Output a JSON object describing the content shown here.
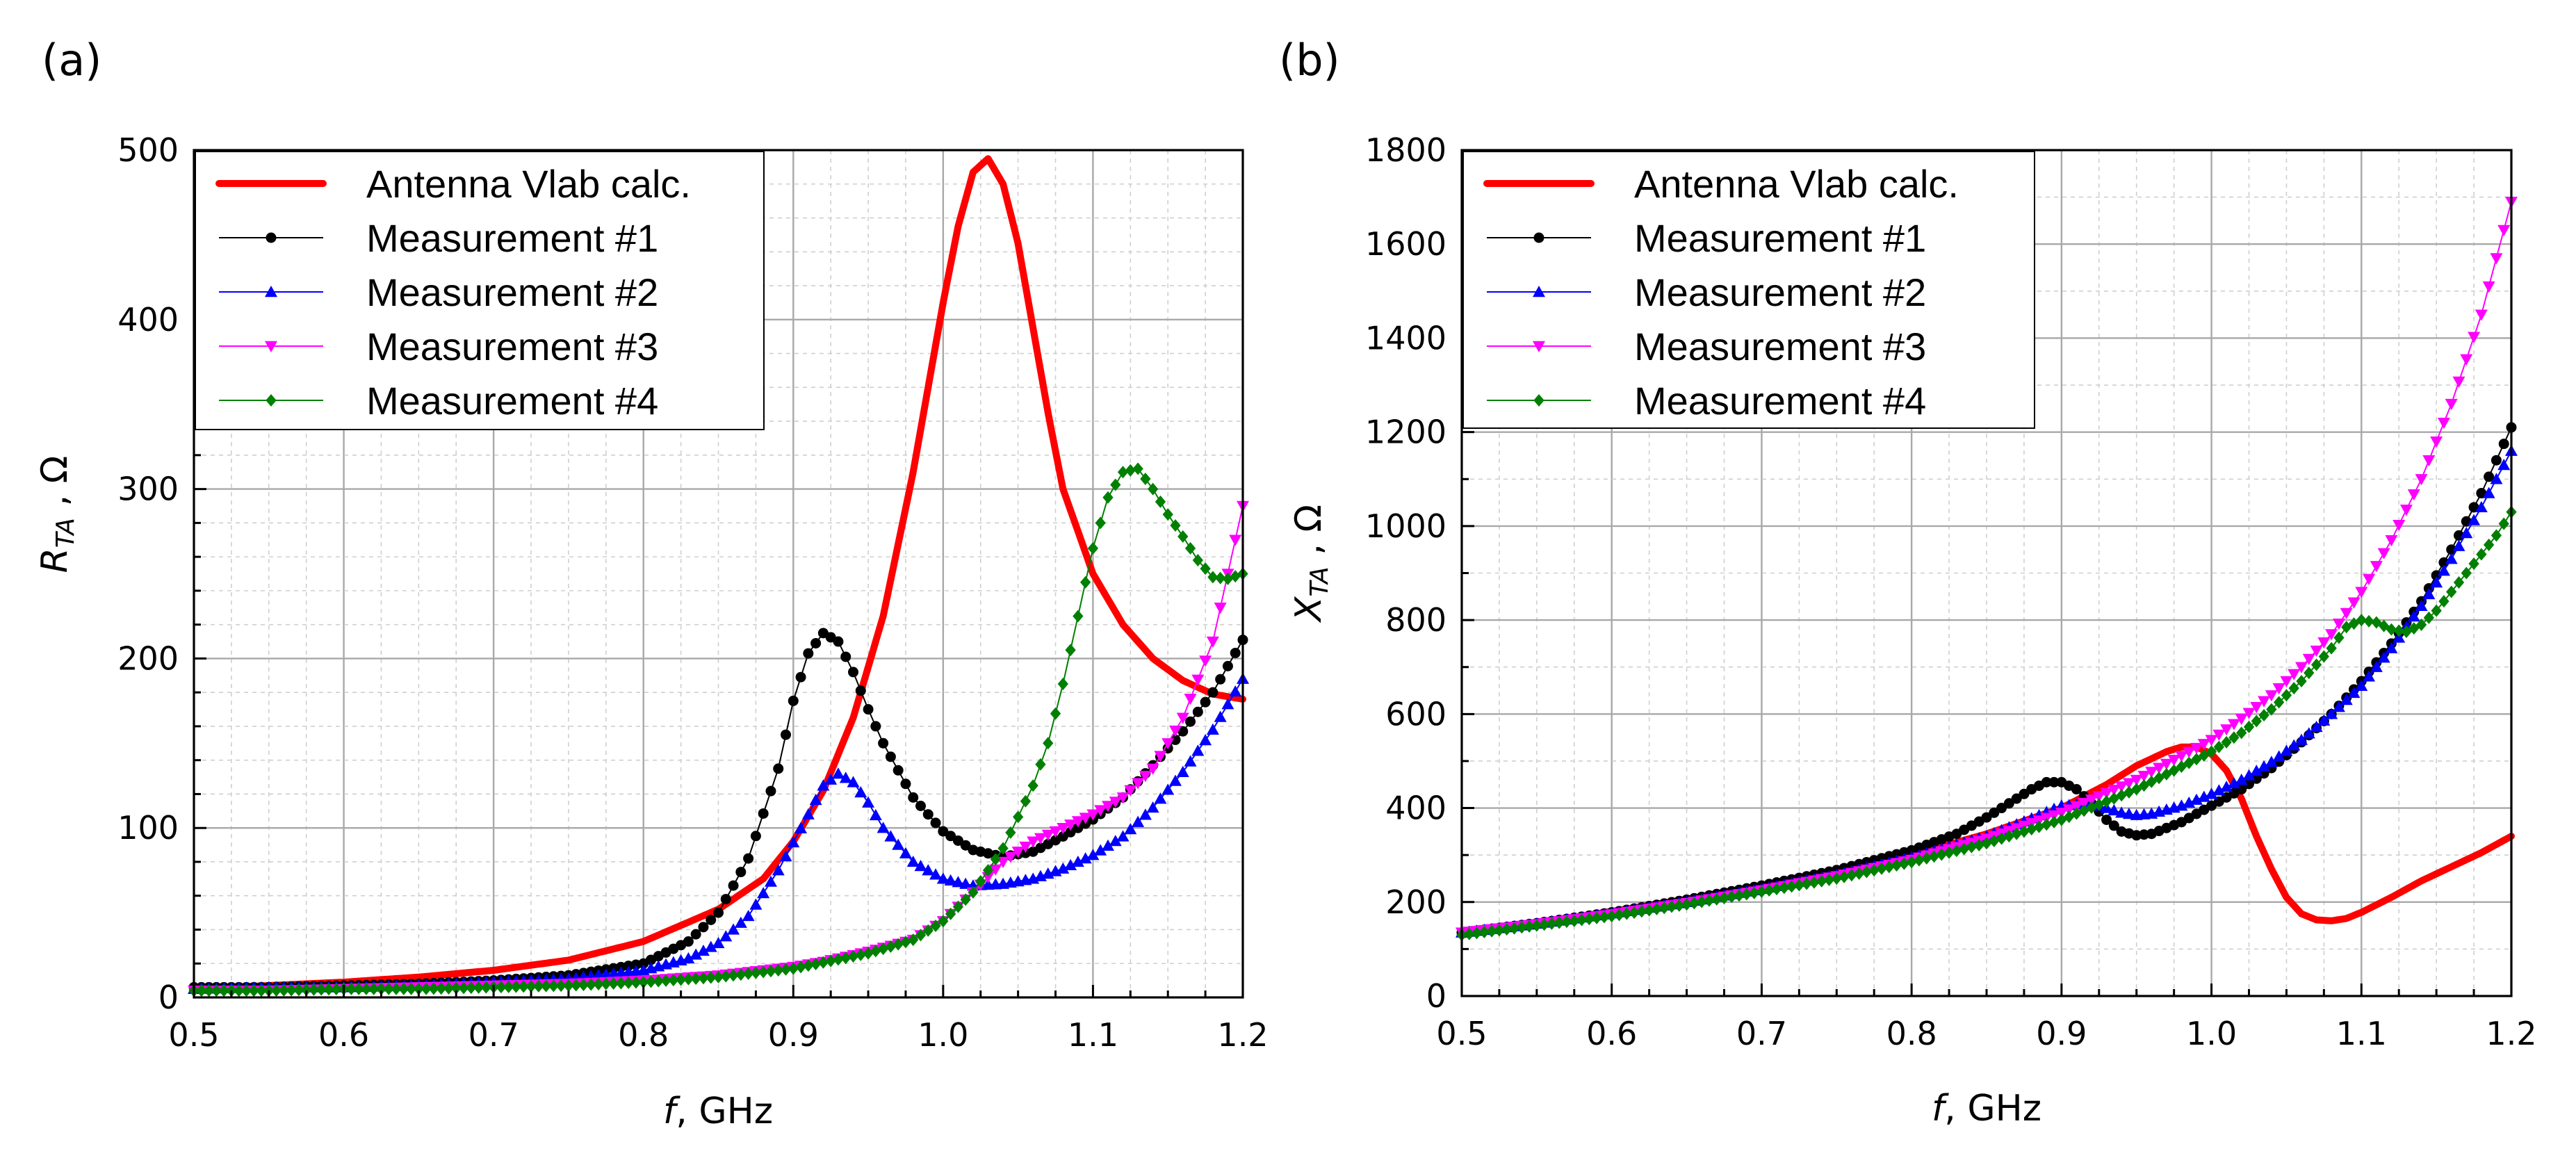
{
  "chart_data": [
    {
      "panel": "(a)",
      "type": "line",
      "xlabel_italic": "f",
      "xlabel_rest": ", GHz",
      "ylabel_main": "R",
      "ylabel_sub": "TA",
      "ylabel_unit": " , Ω",
      "xlim": [
        0.5,
        1.2
      ],
      "ylim": [
        0,
        500
      ],
      "xticks": [
        "0.5",
        "0.6",
        "0.7",
        "0.8",
        "0.9",
        "1.0",
        "1.1",
        "1.2"
      ],
      "yticks": [
        "0",
        "100",
        "200",
        "300",
        "400",
        "500"
      ],
      "grid": true,
      "legend_position": "top-left",
      "series": [
        {
          "name": "Antenna Vlab calc.",
          "color": "#ff0000",
          "marker": "none",
          "style": "thick",
          "x": [
            0.5,
            0.55,
            0.6,
            0.65,
            0.7,
            0.75,
            0.8,
            0.85,
            0.88,
            0.9,
            0.92,
            0.94,
            0.96,
            0.98,
            1.0,
            1.01,
            1.02,
            1.03,
            1.04,
            1.05,
            1.06,
            1.07,
            1.08,
            1.1,
            1.12,
            1.14,
            1.16,
            1.18,
            1.2
          ],
          "y": [
            5,
            7,
            9,
            12,
            16,
            22,
            33,
            52,
            70,
            92,
            122,
            165,
            225,
            310,
            410,
            455,
            487,
            495,
            480,
            445,
            395,
            345,
            300,
            250,
            220,
            200,
            187,
            179,
            176
          ]
        },
        {
          "name": "Measurement #1",
          "color": "#000000",
          "marker": "circle",
          "x": [
            0.5,
            0.55,
            0.6,
            0.65,
            0.7,
            0.75,
            0.8,
            0.83,
            0.85,
            0.87,
            0.89,
            0.9,
            0.91,
            0.92,
            0.93,
            0.94,
            0.95,
            0.96,
            0.98,
            1.0,
            1.02,
            1.04,
            1.06,
            1.08,
            1.1,
            1.12,
            1.14,
            1.16,
            1.18,
            1.2
          ],
          "y": [
            6,
            6,
            7,
            8,
            10,
            13,
            20,
            33,
            50,
            82,
            135,
            175,
            203,
            215,
            210,
            192,
            170,
            150,
            118,
            98,
            87,
            83,
            86,
            95,
            105,
            118,
            137,
            157,
            180,
            211
          ]
        },
        {
          "name": "Measurement #2",
          "color": "#0000ff",
          "marker": "triangle-up",
          "x": [
            0.5,
            0.55,
            0.6,
            0.65,
            0.7,
            0.75,
            0.8,
            0.83,
            0.85,
            0.87,
            0.89,
            0.91,
            0.92,
            0.93,
            0.94,
            0.95,
            0.96,
            0.98,
            1.0,
            1.02,
            1.04,
            1.06,
            1.08,
            1.1,
            1.12,
            1.14,
            1.16,
            1.18,
            1.2
          ],
          "y": [
            5,
            6,
            6,
            7,
            9,
            11,
            16,
            23,
            32,
            48,
            75,
            108,
            125,
            132,
            127,
            115,
            100,
            80,
            70,
            66,
            67,
            70,
            76,
            84,
            95,
            112,
            133,
            158,
            188
          ]
        },
        {
          "name": "Measurement #3",
          "color": "#ff00ff",
          "marker": "triangle-down",
          "x": [
            0.5,
            0.55,
            0.6,
            0.65,
            0.7,
            0.75,
            0.8,
            0.85,
            0.9,
            0.92,
            0.95,
            0.98,
            1.0,
            1.02,
            1.04,
            1.06,
            1.08,
            1.1,
            1.12,
            1.14,
            1.16,
            1.18,
            1.2
          ],
          "y": [
            4,
            4,
            5,
            6,
            7,
            8,
            10,
            13,
            18,
            21,
            27,
            34,
            45,
            62,
            80,
            92,
            100,
            108,
            118,
            135,
            165,
            210,
            290
          ]
        },
        {
          "name": "Measurement #4",
          "color": "#008000",
          "marker": "diamond",
          "x": [
            0.5,
            0.55,
            0.6,
            0.65,
            0.7,
            0.75,
            0.8,
            0.85,
            0.9,
            0.95,
            0.98,
            1.0,
            1.02,
            1.04,
            1.06,
            1.07,
            1.08,
            1.09,
            1.1,
            1.11,
            1.12,
            1.13,
            1.14,
            1.15,
            1.16,
            1.17,
            1.18,
            1.19,
            1.2
          ],
          "y": [
            4,
            4,
            5,
            5,
            6,
            7,
            9,
            12,
            17,
            26,
            34,
            45,
            62,
            88,
            125,
            150,
            185,
            225,
            265,
            295,
            310,
            312,
            300,
            285,
            272,
            258,
            248,
            247,
            250
          ]
        }
      ]
    },
    {
      "panel": "(b)",
      "type": "line",
      "xlabel_italic": "f",
      "xlabel_rest": ", GHz",
      "ylabel_main": "X",
      "ylabel_sub": "TA",
      "ylabel_unit": " , Ω",
      "xlim": [
        0.5,
        1.2
      ],
      "ylim": [
        0,
        1800
      ],
      "xticks": [
        "0.5",
        "0.6",
        "0.7",
        "0.8",
        "0.9",
        "1.0",
        "1.1",
        "1.2"
      ],
      "yticks": [
        "0",
        "200",
        "400",
        "600",
        "800",
        "1000",
        "1200",
        "1400",
        "1600",
        "1800"
      ],
      "grid": true,
      "legend_position": "top-left",
      "series": [
        {
          "name": "Antenna Vlab calc.",
          "color": "#ff0000",
          "marker": "none",
          "style": "thick",
          "x": [
            0.5,
            0.6,
            0.7,
            0.8,
            0.85,
            0.9,
            0.93,
            0.95,
            0.97,
            0.98,
            0.99,
            1.0,
            1.01,
            1.02,
            1.03,
            1.04,
            1.05,
            1.06,
            1.07,
            1.08,
            1.09,
            1.1,
            1.12,
            1.14,
            1.16,
            1.18,
            1.2
          ],
          "y": [
            130,
            180,
            230,
            300,
            345,
            400,
            450,
            490,
            520,
            530,
            530,
            515,
            480,
            420,
            340,
            270,
            210,
            175,
            162,
            160,
            165,
            178,
            210,
            245,
            275,
            305,
            340
          ]
        },
        {
          "name": "Measurement #1",
          "color": "#000000",
          "marker": "circle",
          "x": [
            0.5,
            0.55,
            0.6,
            0.65,
            0.7,
            0.75,
            0.8,
            0.83,
            0.85,
            0.87,
            0.88,
            0.89,
            0.9,
            0.91,
            0.92,
            0.93,
            0.94,
            0.95,
            0.96,
            0.98,
            1.0,
            1.02,
            1.04,
            1.06,
            1.08,
            1.1,
            1.12,
            1.14,
            1.16,
            1.18,
            1.2
          ],
          "y": [
            135,
            155,
            178,
            205,
            235,
            268,
            310,
            345,
            380,
            420,
            440,
            455,
            455,
            440,
            410,
            375,
            350,
            342,
            345,
            370,
            405,
            440,
            485,
            540,
            600,
            670,
            750,
            840,
            950,
            1070,
            1210
          ]
        },
        {
          "name": "Measurement #2",
          "color": "#0000ff",
          "marker": "triangle-up",
          "x": [
            0.5,
            0.55,
            0.6,
            0.65,
            0.7,
            0.75,
            0.8,
            0.85,
            0.88,
            0.9,
            0.92,
            0.93,
            0.94,
            0.95,
            0.96,
            0.98,
            1.0,
            1.02,
            1.04,
            1.06,
            1.08,
            1.1,
            1.12,
            1.14,
            1.16,
            1.18,
            1.2
          ],
          "y": [
            135,
            154,
            176,
            200,
            228,
            258,
            295,
            340,
            378,
            405,
            410,
            400,
            390,
            385,
            388,
            405,
            430,
            460,
            498,
            545,
            600,
            660,
            740,
            830,
            930,
            1040,
            1160
          ]
        },
        {
          "name": "Measurement #3",
          "color": "#ff00ff",
          "marker": "triangle-down",
          "x": [
            0.5,
            0.55,
            0.6,
            0.65,
            0.7,
            0.75,
            0.8,
            0.85,
            0.9,
            0.95,
            1.0,
            1.02,
            1.04,
            1.06,
            1.08,
            1.1,
            1.12,
            1.14,
            1.16,
            1.18,
            1.2
          ],
          "y": [
            135,
            153,
            174,
            198,
            225,
            255,
            290,
            335,
            390,
            460,
            545,
            590,
            640,
            700,
            770,
            860,
            970,
            1100,
            1260,
            1450,
            1690
          ]
        },
        {
          "name": "Measurement #4",
          "color": "#008000",
          "marker": "diamond",
          "x": [
            0.5,
            0.55,
            0.6,
            0.65,
            0.7,
            0.75,
            0.8,
            0.85,
            0.9,
            0.95,
            1.0,
            1.02,
            1.04,
            1.06,
            1.08,
            1.09,
            1.1,
            1.11,
            1.12,
            1.13,
            1.14,
            1.15,
            1.16,
            1.17,
            1.18,
            1.19,
            1.2
          ],
          "y": [
            130,
            150,
            170,
            195,
            222,
            250,
            285,
            325,
            375,
            440,
            520,
            560,
            610,
            670,
            740,
            785,
            800,
            795,
            780,
            775,
            790,
            820,
            860,
            900,
            940,
            980,
            1030
          ]
        }
      ]
    }
  ]
}
